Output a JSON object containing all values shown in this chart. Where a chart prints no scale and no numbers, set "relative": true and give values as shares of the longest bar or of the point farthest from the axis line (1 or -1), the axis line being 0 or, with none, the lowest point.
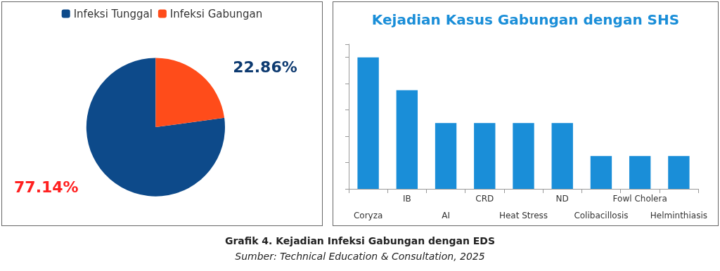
{
  "chart_data": [
    {
      "type": "pie",
      "categories": [
        "Infeksi Tunggal",
        "Infeksi Gabungan"
      ],
      "values": [
        77.14,
        22.86
      ],
      "colors": [
        "#0d4a8a",
        "#ff4c1a"
      ],
      "value_labels": [
        "77.14%",
        "22.86%"
      ],
      "legend": "top",
      "annotations": [
        "Grafik 4. Kejadian Infeksi Gabungan dengan EDS",
        "Sumber: Technical Education & Consultation, 2025"
      ]
    },
    {
      "type": "bar",
      "title": "Kejadian Kasus Gabungan dengan SHS",
      "categories": [
        "Coryza",
        "IB",
        "AI",
        "CRD",
        "Heat Stress",
        "ND",
        "Colibacillosis",
        "Fowl Cholera",
        "Helminthiasis"
      ],
      "values": [
        1,
        0.75,
        0.5,
        0.5,
        0.5,
        0.5,
        0.25,
        0.25,
        0.25
      ],
      "color": "#1a8ed8",
      "relative": true,
      "grid": false,
      "legend": false
    }
  ]
}
